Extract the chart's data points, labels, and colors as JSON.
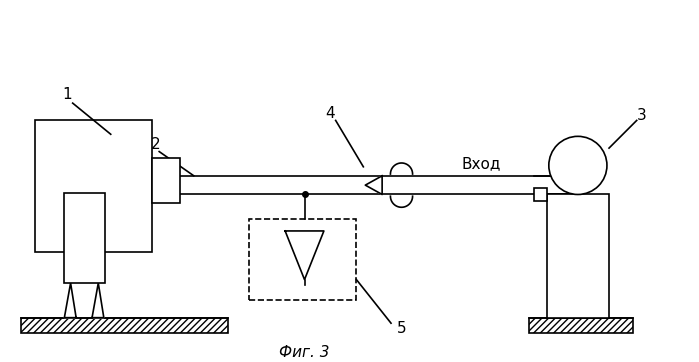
{
  "background_color": "#ffffff",
  "fig_width": 6.99,
  "fig_height": 3.62,
  "dpi": 100,
  "title": "Фиг. 3",
  "label_1": "1",
  "label_2": "2",
  "label_3": "3",
  "label_4": "4",
  "label_5": "5",
  "label_vhod": "Вход",
  "line_color": "#000000"
}
